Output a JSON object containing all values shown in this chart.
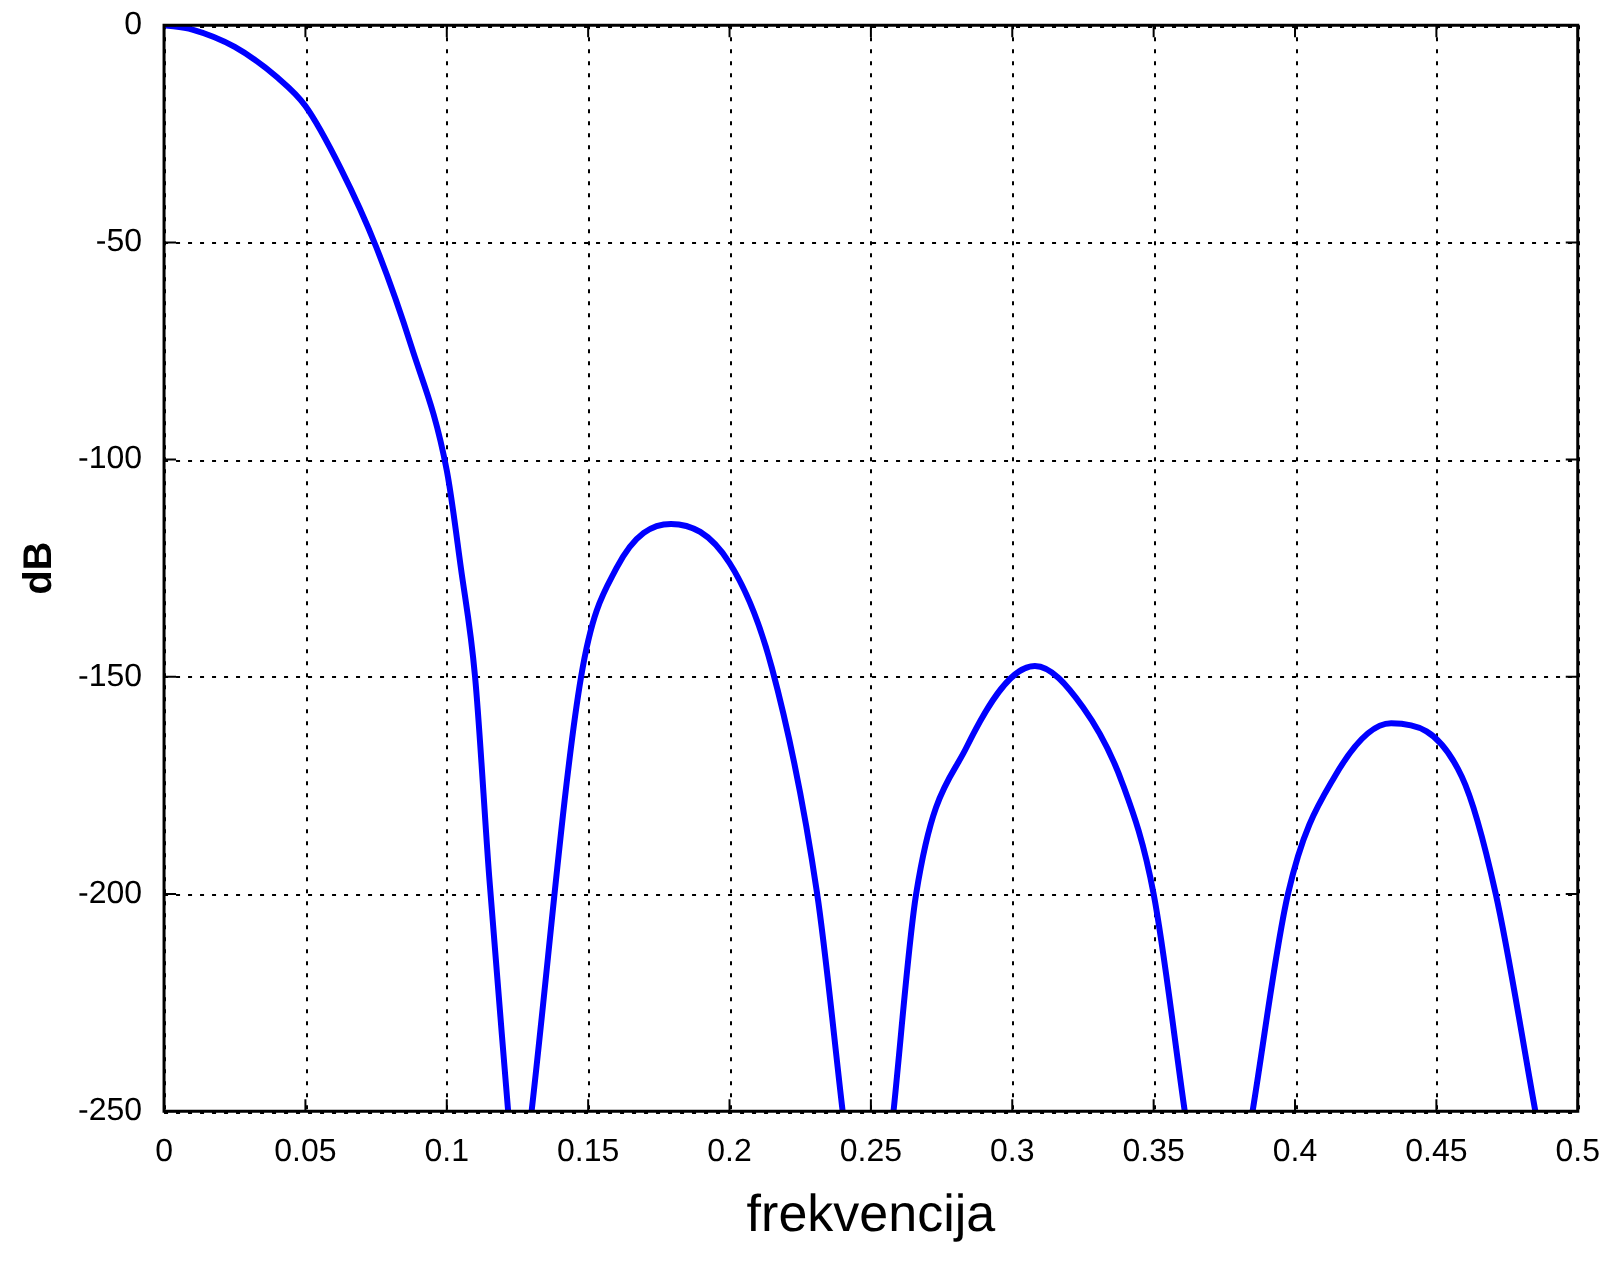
{
  "chart_data": {
    "type": "line",
    "xlabel": "frekvencija",
    "ylabel": "dB",
    "xlim": [
      0,
      0.5
    ],
    "xticks": [
      0,
      0.05,
      0.1,
      0.15,
      0.2,
      0.25,
      0.3,
      0.35,
      0.4,
      0.45,
      0.5
    ],
    "ylim": [
      -250,
      0
    ],
    "yticks": [
      -250,
      -200,
      -150,
      -100,
      -50,
      0
    ],
    "grid": true,
    "marker": "none",
    "line_style": "solid",
    "legend": false,
    "series": [
      {
        "color": "#0000ff",
        "x": [
          0,
          0.01,
          0.025,
          0.04,
          0.05,
          0.0625,
          0.075,
          0.0875,
          0.1,
          0.105,
          0.11,
          0.115,
          0.1217,
          0.1218,
          0.13,
          0.1475,
          0.16,
          0.1793,
          0.2,
          0.215,
          0.231,
          0.24,
          0.2401,
          0.258,
          0.266,
          0.284,
          0.308,
          0.325,
          0.339,
          0.35,
          0.361,
          0.3611,
          0.385,
          0.3975,
          0.414,
          0.434,
          0.459,
          0.471,
          0.485
        ],
        "values": [
          0,
          -1,
          -5,
          -12,
          -18.6,
          -33,
          -51,
          -74,
          -102.5,
          -125,
          -150,
          -196,
          -250,
          null,
          -250,
          -150,
          -125,
          -114.8,
          -123.8,
          -148,
          -200,
          -250,
          null,
          -250,
          -200,
          -166,
          -147.5,
          -157,
          -174.6,
          -200,
          -250,
          null,
          -250,
          -200,
          -173,
          -160.7,
          -173,
          -200,
          -250
        ]
      }
    ]
  }
}
